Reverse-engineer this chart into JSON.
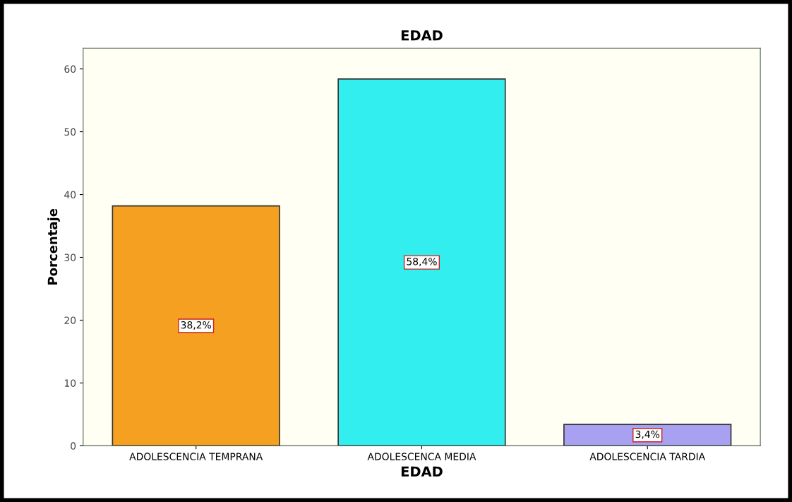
{
  "chart_data": {
    "type": "bar",
    "title": "EDAD",
    "xlabel": "EDAD",
    "ylabel": "Porcentaje",
    "categories": [
      "ADOLESCENCIA TEMPRANA",
      "ADOLESCENCA MEDIA",
      "ADOLESCENCIA TARDIA"
    ],
    "values": [
      38.2,
      58.4,
      3.4
    ],
    "colors": [
      "#f5a020",
      "#33eeee",
      "#a8a0f0"
    ],
    "value_labels": [
      "38,2%",
      "58,4%",
      "3,4%"
    ],
    "ylim": [
      0,
      63.3
    ],
    "yticks": [
      0,
      10,
      20,
      30,
      40,
      50,
      60
    ],
    "grid": false,
    "legend": false
  }
}
